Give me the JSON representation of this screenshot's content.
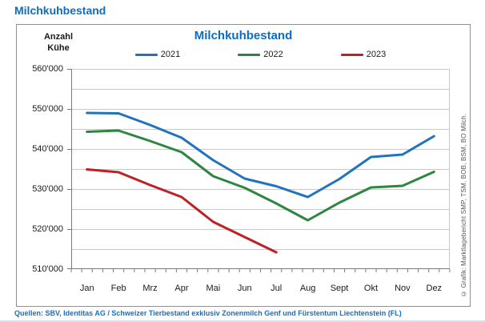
{
  "page": {
    "title": "Milchkuhbestand",
    "source_line": "Quellen: SBV, Identitas AG / Schweizer Tierbestand exklusiv Zonenmilch Genf und Fürstentum Liechtenstein (FL)"
  },
  "chart": {
    "title": "Milchkuhbestand",
    "unit_label_line1": "Anzahl",
    "unit_label_line2": "Kühe",
    "copyright": "© Grafik: Marktlagebericht SMP, TSM, BOB, BSM, BO Milch."
  },
  "colors": {
    "heading_blue": "#0d6cbd",
    "sources_blue": "#176fc1",
    "grid_gray": "#c9c9c9",
    "axis_gray": "#7a7a7a",
    "series_2021": "#2273bd",
    "series_2022": "#2d8540",
    "series_2023": "#bf2026"
  },
  "chart_data": {
    "type": "line",
    "title": "Milchkuhbestand",
    "ylabel": "Anzahl Kühe",
    "categories": [
      "Jan",
      "Feb",
      "Mrz",
      "Apr",
      "Mai",
      "Jun",
      "Jul",
      "Aug",
      "Sept",
      "Okt",
      "Nov",
      "Dez"
    ],
    "series": [
      {
        "name": "2021",
        "color": "#2273bd",
        "values": [
          549000,
          548900,
          546000,
          542800,
          537200,
          532600,
          530700,
          528000,
          532500,
          538000,
          538600,
          543200
        ]
      },
      {
        "name": "2022",
        "color": "#2d8540",
        "values": [
          544300,
          544600,
          542000,
          539200,
          533200,
          530300,
          526400,
          522200,
          526600,
          530400,
          530800,
          534300
        ]
      },
      {
        "name": "2023",
        "color": "#bf2026",
        "values": [
          534900,
          534200,
          531000,
          528000,
          521800,
          518000,
          514200
        ]
      }
    ],
    "ylim": [
      510000,
      560000
    ],
    "ytick_step": 10000,
    "grid_step": 5000,
    "grid": true,
    "legend_position": "top",
    "x_minor_ticks_per_interval": 3
  }
}
